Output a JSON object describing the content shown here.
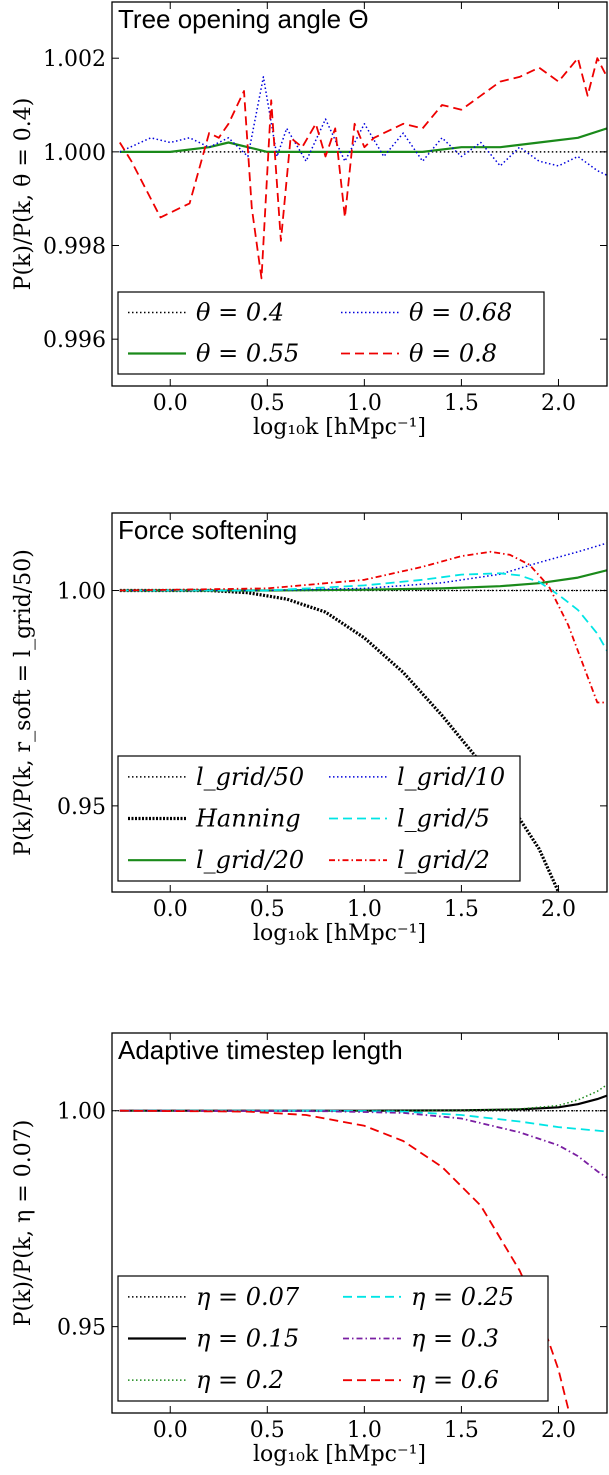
{
  "chart_data": [
    {
      "type": "line",
      "title": "Tree opening angle Θ",
      "xlabel": "log₁₀k [hMpc⁻¹]",
      "ylabel": "P(k)/P(k, θ = 0.4)",
      "xlim": [
        -0.3,
        2.25
      ],
      "ylim": [
        0.995,
        1.0032
      ],
      "xticks": [
        {
          "value": 0.0,
          "label": "0.0"
        },
        {
          "value": 0.5,
          "label": "0.5"
        },
        {
          "value": 1.0,
          "label": "1.0"
        },
        {
          "value": 1.5,
          "label": "1.5"
        },
        {
          "value": 2.0,
          "label": "2.0"
        }
      ],
      "yticks": [
        {
          "value": 0.996,
          "label": "0.996"
        },
        {
          "value": 0.998,
          "label": "0.998"
        },
        {
          "value": 1.0,
          "label": "1.000"
        },
        {
          "value": 1.002,
          "label": "1.002"
        }
      ],
      "reference_line": null,
      "legend_position": "lower-left",
      "legend_columns": 2,
      "series": [
        {
          "name": "θ = 0.4",
          "color": "#000000",
          "style": "dotted",
          "x": [
            -0.26,
            2.25
          ],
          "y": [
            1.0,
            1.0
          ]
        },
        {
          "name": "θ = 0.55",
          "color": "#1a8a1a",
          "style": "solid",
          "x": [
            -0.26,
            0.0,
            0.2,
            0.3,
            0.4,
            0.5,
            0.7,
            1.0,
            1.3,
            1.5,
            1.7,
            1.9,
            2.1,
            2.25
          ],
          "y": [
            1.0,
            1.0,
            1.0001,
            1.0002,
            1.0001,
            1.0,
            1.0,
            1.0,
            1.0,
            1.0001,
            1.0001,
            1.0002,
            1.0003,
            1.0005
          ]
        },
        {
          "name": "θ = 0.68",
          "color": "#0000dd",
          "style": "dotted",
          "x": [
            -0.26,
            -0.1,
            0.0,
            0.1,
            0.2,
            0.3,
            0.4,
            0.48,
            0.55,
            0.6,
            0.7,
            0.8,
            0.9,
            1.0,
            1.1,
            1.2,
            1.3,
            1.4,
            1.5,
            1.6,
            1.7,
            1.8,
            1.9,
            2.0,
            2.1,
            2.2,
            2.25
          ],
          "y": [
            1.0,
            1.0003,
            1.0002,
            1.0003,
            1.0001,
            1.0003,
            0.9999,
            1.0016,
            0.9999,
            1.0005,
            0.9998,
            1.0007,
            0.9998,
            1.0006,
            0.9999,
            1.0004,
            0.9998,
            1.0003,
            0.9999,
            1.0002,
            0.9997,
            1.0001,
            0.9998,
            0.9997,
            0.9999,
            0.9996,
            0.9995
          ]
        },
        {
          "name": "θ = 0.8",
          "color": "#ee0000",
          "style": "dashed",
          "x": [
            -0.26,
            -0.2,
            -0.05,
            0.1,
            0.2,
            0.25,
            0.3,
            0.38,
            0.42,
            0.47,
            0.52,
            0.57,
            0.62,
            0.68,
            0.75,
            0.8,
            0.85,
            0.9,
            0.95,
            1.0,
            1.05,
            1.1,
            1.2,
            1.3,
            1.4,
            1.5,
            1.6,
            1.7,
            1.8,
            1.9,
            2.0,
            2.1,
            2.15,
            2.2,
            2.25
          ],
          "y": [
            1.0002,
            0.9998,
            0.9986,
            0.9989,
            1.0004,
            1.0003,
            1.0006,
            1.0013,
            0.9988,
            0.9973,
            1.0011,
            0.9981,
            1.0003,
            1.0001,
            1.0006,
            0.9999,
            1.0005,
            0.9986,
            1.0006,
            1.0001,
            1.0003,
            1.0004,
            1.0006,
            1.0005,
            1.001,
            1.0009,
            1.0012,
            1.0015,
            1.0016,
            1.0018,
            1.0015,
            1.002,
            1.0012,
            1.002,
            1.0016
          ]
        }
      ]
    },
    {
      "type": "line",
      "title": "Force softening",
      "xlabel": "log₁₀k [hMpc⁻¹]",
      "ylabel": "P(k)/P(k, r_soft = l_grid/50)",
      "xlim": [
        -0.3,
        2.25
      ],
      "ylim": [
        0.93,
        1.018
      ],
      "xticks": [
        {
          "value": 0.0,
          "label": "0.0"
        },
        {
          "value": 0.5,
          "label": "0.5"
        },
        {
          "value": 1.0,
          "label": "1.0"
        },
        {
          "value": 1.5,
          "label": "1.5"
        },
        {
          "value": 2.0,
          "label": "2.0"
        }
      ],
      "yticks": [
        {
          "value": 0.95,
          "label": "0.95"
        },
        {
          "value": 1.0,
          "label": "1.00"
        }
      ],
      "reference_line": 1.0,
      "legend_position": "lower-left",
      "legend_columns": 2,
      "series": [
        {
          "name": "l_grid/50",
          "color": "#000000",
          "style": "dotted",
          "x": [
            -0.26,
            2.25
          ],
          "y": [
            1.0,
            1.0
          ]
        },
        {
          "name": "Hanning",
          "color": "#000000",
          "style": "thickdotted",
          "x": [
            -0.26,
            0.2,
            0.4,
            0.6,
            0.8,
            1.0,
            1.2,
            1.4,
            1.6,
            1.8,
            1.9,
            2.0
          ],
          "y": [
            1.0,
            1.0,
            0.9995,
            0.998,
            0.995,
            0.989,
            0.981,
            0.971,
            0.96,
            0.947,
            0.94,
            0.93
          ]
        },
        {
          "name": "l_grid/20",
          "color": "#1a8a1a",
          "style": "solid",
          "x": [
            -0.26,
            0.5,
            1.0,
            1.4,
            1.7,
            1.9,
            2.1,
            2.25
          ],
          "y": [
            1.0,
            1.0,
            1.0002,
            1.0005,
            1.001,
            1.0017,
            1.003,
            1.0047
          ]
        },
        {
          "name": "l_grid/10",
          "color": "#0000dd",
          "style": "dotted",
          "x": [
            -0.26,
            0.5,
            1.0,
            1.4,
            1.7,
            1.9,
            2.1,
            2.25
          ],
          "y": [
            1.0,
            1.0,
            1.0005,
            1.0018,
            1.0038,
            1.0065,
            1.009,
            1.011
          ]
        },
        {
          "name": "l_grid/5",
          "color": "#00e5e5",
          "style": "dashed",
          "x": [
            -0.26,
            0.5,
            1.0,
            1.3,
            1.5,
            1.7,
            1.8,
            1.9,
            2.0,
            2.1,
            2.2,
            2.25
          ],
          "y": [
            1.0,
            1.0,
            1.0012,
            1.0025,
            1.0037,
            1.004,
            1.0035,
            1.002,
            0.999,
            0.9955,
            0.99,
            0.986
          ]
        },
        {
          "name": "l_grid/2",
          "color": "#ee0000",
          "style": "dashdot",
          "x": [
            -0.26,
            0.5,
            1.0,
            1.3,
            1.5,
            1.65,
            1.75,
            1.85,
            1.95,
            2.05,
            2.15,
            2.2,
            2.25
          ],
          "y": [
            1.0,
            1.0005,
            1.0025,
            1.0055,
            1.008,
            1.009,
            1.0083,
            1.006,
            1.001,
            0.992,
            0.98,
            0.974,
            0.974
          ]
        }
      ]
    },
    {
      "type": "line",
      "title": "Adaptive timestep length",
      "xlabel": "log₁₀k [hMpc⁻¹]",
      "ylabel": "P(k)/P(k, η = 0.07)",
      "xlim": [
        -0.3,
        2.25
      ],
      "ylim": [
        0.93,
        1.018
      ],
      "xticks": [
        {
          "value": 0.0,
          "label": "0.0"
        },
        {
          "value": 0.5,
          "label": "0.5"
        },
        {
          "value": 1.0,
          "label": "1.0"
        },
        {
          "value": 1.5,
          "label": "1.5"
        },
        {
          "value": 2.0,
          "label": "2.0"
        }
      ],
      "yticks": [
        {
          "value": 0.95,
          "label": "0.95"
        },
        {
          "value": 1.0,
          "label": "1.00"
        }
      ],
      "reference_line": 1.0,
      "legend_position": "lower-left",
      "legend_columns": 2,
      "series": [
        {
          "name": "η = 0.07",
          "color": "#000000",
          "style": "dotted",
          "x": [
            -0.26,
            2.25
          ],
          "y": [
            1.0,
            1.0
          ]
        },
        {
          "name": "η = 0.15",
          "color": "#000000",
          "style": "solid",
          "x": [
            -0.26,
            1.0,
            1.5,
            1.8,
            2.0,
            2.1,
            2.2,
            2.25
          ],
          "y": [
            1.0,
            1.0,
            1.0001,
            1.0003,
            1.0008,
            1.0015,
            1.0027,
            1.0035
          ]
        },
        {
          "name": "η = 0.2",
          "color": "#1a8a1a",
          "style": "dotted",
          "x": [
            -0.26,
            1.0,
            1.5,
            1.8,
            2.0,
            2.1,
            2.2,
            2.25
          ],
          "y": [
            1.0,
            1.0,
            1.0001,
            1.0004,
            1.0012,
            1.0025,
            1.0045,
            1.006
          ]
        },
        {
          "name": "η = 0.25",
          "color": "#00e5e5",
          "style": "dashed",
          "x": [
            -0.26,
            0.8,
            1.2,
            1.5,
            1.8,
            2.0,
            2.1,
            2.25
          ],
          "y": [
            1.0,
            1.0,
            0.9998,
            0.999,
            0.9975,
            0.9962,
            0.9958,
            0.9952
          ]
        },
        {
          "name": "η = 0.3",
          "color": "#7a1fa2",
          "style": "dashdot",
          "x": [
            -0.26,
            0.8,
            1.2,
            1.5,
            1.8,
            2.0,
            2.1,
            2.2,
            2.25
          ],
          "y": [
            1.0,
            0.9999,
            0.9995,
            0.9982,
            0.995,
            0.992,
            0.9895,
            0.986,
            0.9845
          ]
        },
        {
          "name": "η = 0.6",
          "color": "#ee0000",
          "style": "dashed",
          "x": [
            -0.26,
            0.4,
            0.7,
            1.0,
            1.2,
            1.4,
            1.6,
            1.8,
            1.9,
            2.0,
            2.05
          ],
          "y": [
            1.0,
            0.9998,
            0.999,
            0.9965,
            0.993,
            0.987,
            0.978,
            0.963,
            0.953,
            0.94,
            0.931
          ]
        }
      ]
    }
  ]
}
